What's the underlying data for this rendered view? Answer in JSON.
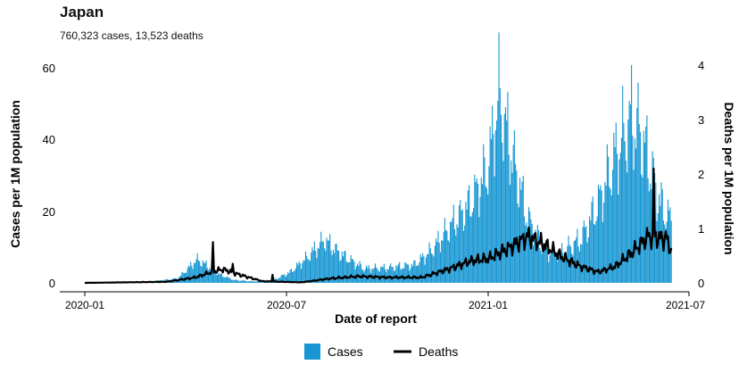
{
  "title": "Japan",
  "subtitle": "760,323 cases, 13,523 deaths",
  "colors": {
    "cases": "#1696d2",
    "deaths": "#000000"
  },
  "chart_data": {
    "type": "bar",
    "title": "Japan",
    "subtitle": "760,323 cases, 13,523 deaths",
    "xlabel": "Date of report",
    "ylabel": "Cases per 1M population",
    "y2label": "Deaths per 1M population",
    "xticks": [
      "2020-01",
      "2020-07",
      "2021-01",
      "2021-07"
    ],
    "yticks": [
      "0",
      "20",
      "40",
      "60"
    ],
    "y2ticks": [
      "0",
      "1",
      "2",
      "3",
      "4"
    ],
    "xlim": [
      "2020-01-01",
      "2021-07-01"
    ],
    "ylim": [
      0,
      62.5
    ],
    "y2lim": [
      0,
      4.17
    ],
    "grid": false,
    "legend_position": "bottom",
    "legend": [
      "Cases",
      "Deaths"
    ],
    "cases_anchors": [
      [
        "2020-01-01",
        0
      ],
      [
        "2020-02-20",
        0.1
      ],
      [
        "2020-03-25",
        1.2
      ],
      [
        "2020-04-05",
        4.5
      ],
      [
        "2020-04-12",
        6.5
      ],
      [
        "2020-04-20",
        5.0
      ],
      [
        "2020-05-01",
        2.5
      ],
      [
        "2020-05-15",
        0.8
      ],
      [
        "2020-06-01",
        0.4
      ],
      [
        "2020-06-20",
        0.8
      ],
      [
        "2020-07-05",
        3.0
      ],
      [
        "2020-07-20",
        7.0
      ],
      [
        "2020-08-05",
        12.0
      ],
      [
        "2020-08-20",
        8.0
      ],
      [
        "2020-09-10",
        4.0
      ],
      [
        "2020-10-01",
        4.2
      ],
      [
        "2020-10-25",
        5.0
      ],
      [
        "2020-11-10",
        9.0
      ],
      [
        "2020-11-25",
        15.0
      ],
      [
        "2020-12-15",
        22.0
      ],
      [
        "2020-12-31",
        32.0
      ],
      [
        "2021-01-10",
        52.0
      ],
      [
        "2021-01-20",
        38.0
      ],
      [
        "2021-02-05",
        18.0
      ],
      [
        "2021-02-20",
        9.0
      ],
      [
        "2021-03-05",
        8.0
      ],
      [
        "2021-03-25",
        12.0
      ],
      [
        "2021-04-10",
        22.0
      ],
      [
        "2021-04-25",
        35.0
      ],
      [
        "2021-05-10",
        46.0
      ],
      [
        "2021-05-20",
        40.0
      ],
      [
        "2021-06-05",
        22.0
      ],
      [
        "2021-06-15",
        17.0
      ]
    ],
    "deaths_anchors": [
      [
        "2020-01-01",
        0
      ],
      [
        "2020-03-15",
        0.02
      ],
      [
        "2020-04-10",
        0.1
      ],
      [
        "2020-04-25",
        0.2
      ],
      [
        "2020-05-05",
        0.25
      ],
      [
        "2020-05-20",
        0.15
      ],
      [
        "2020-06-10",
        0.03
      ],
      [
        "2020-07-15",
        0.01
      ],
      [
        "2020-08-10",
        0.08
      ],
      [
        "2020-09-05",
        0.12
      ],
      [
        "2020-10-01",
        0.1
      ],
      [
        "2020-11-01",
        0.1
      ],
      [
        "2020-11-25",
        0.25
      ],
      [
        "2020-12-15",
        0.4
      ],
      [
        "2021-01-01",
        0.45
      ],
      [
        "2021-01-20",
        0.65
      ],
      [
        "2021-02-05",
        0.85
      ],
      [
        "2021-02-20",
        0.7
      ],
      [
        "2021-03-10",
        0.45
      ],
      [
        "2021-03-25",
        0.3
      ],
      [
        "2021-04-10",
        0.2
      ],
      [
        "2021-04-25",
        0.3
      ],
      [
        "2021-05-10",
        0.55
      ],
      [
        "2021-05-25",
        0.85
      ],
      [
        "2021-06-10",
        0.8
      ],
      [
        "2021-06-15",
        0.6
      ]
    ],
    "deaths_spikes": [
      [
        "2020-04-26",
        0.75
      ],
      [
        "2020-05-14",
        0.35
      ],
      [
        "2020-06-19",
        0.15
      ],
      [
        "2021-05-30",
        2.1
      ],
      [
        "2021-06-10",
        0.95
      ]
    ]
  },
  "legend": {
    "cases_label": "Cases",
    "deaths_label": "Deaths"
  }
}
